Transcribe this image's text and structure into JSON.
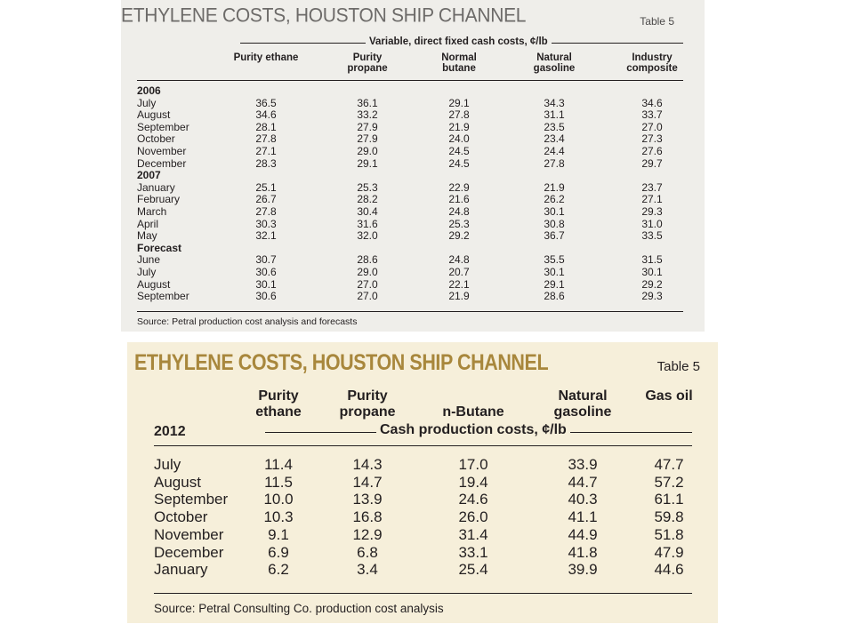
{
  "table1": {
    "title": "ETHYLENE COSTS, HOUSTON SHIP CHANNEL",
    "table_label": "Table 5",
    "spanner": "Variable, direct fixed cash costs, ¢/lb",
    "columns": [
      "Purity ethane",
      "Purity propane",
      "Normal butane",
      "Natural gasoline",
      "Industry composite"
    ],
    "groups": [
      {
        "label": "2006",
        "rows": [
          {
            "month": "July",
            "values": [
              "36.5",
              "36.1",
              "29.1",
              "34.3",
              "34.6"
            ]
          },
          {
            "month": "August",
            "values": [
              "34.6",
              "33.2",
              "27.8",
              "31.1",
              "33.7"
            ]
          },
          {
            "month": "September",
            "values": [
              "28.1",
              "27.9",
              "21.9",
              "23.5",
              "27.0"
            ]
          },
          {
            "month": "October",
            "values": [
              "27.8",
              "27.9",
              "24.0",
              "23.4",
              "27.3"
            ]
          },
          {
            "month": "November",
            "values": [
              "27.1",
              "29.0",
              "24.5",
              "24.4",
              "27.6"
            ]
          },
          {
            "month": "December",
            "values": [
              "28.3",
              "29.1",
              "24.5",
              "27.8",
              "29.7"
            ]
          }
        ]
      },
      {
        "label": "2007",
        "rows": [
          {
            "month": "January",
            "values": [
              "25.1",
              "25.3",
              "22.9",
              "21.9",
              "23.7"
            ]
          },
          {
            "month": "February",
            "values": [
              "26.7",
              "28.2",
              "21.6",
              "26.2",
              "27.1"
            ]
          },
          {
            "month": "March",
            "values": [
              "27.8",
              "30.4",
              "24.8",
              "30.1",
              "29.3"
            ]
          },
          {
            "month": "April",
            "values": [
              "30.3",
              "31.6",
              "25.3",
              "30.8",
              "31.0"
            ]
          },
          {
            "month": "May",
            "values": [
              "32.1",
              "32.0",
              "29.2",
              "36.7",
              "33.5"
            ]
          }
        ]
      },
      {
        "label": "Forecast",
        "rows": [
          {
            "month": "June",
            "values": [
              "30.7",
              "28.6",
              "24.8",
              "35.5",
              "31.5"
            ]
          },
          {
            "month": "July",
            "values": [
              "30.6",
              "29.0",
              "20.7",
              "30.1",
              "30.1"
            ]
          },
          {
            "month": "August",
            "values": [
              "30.1",
              "27.0",
              "22.1",
              "29.1",
              "29.2"
            ]
          },
          {
            "month": "September",
            "values": [
              "30.6",
              "27.0",
              "21.9",
              "28.6",
              "29.3"
            ]
          }
        ]
      }
    ],
    "source": "Source: Petral production cost analysis and forecasts",
    "colors": {
      "background": "#efeeea",
      "title": "#6d6b69"
    }
  },
  "table2": {
    "title": "ETHYLENE COSTS, HOUSTON SHIP CHANNEL",
    "table_label": "Table 5",
    "year": "2012",
    "spanner": "Cash production costs, ¢/lb",
    "columns": [
      "Purity ethane",
      "Purity propane",
      "n-Butane",
      "Natural gasoline",
      "Gas oil"
    ],
    "rows": [
      {
        "month": "July",
        "values": [
          "11.4",
          "14.3",
          "17.0",
          "33.9",
          "47.7"
        ]
      },
      {
        "month": "August",
        "values": [
          "11.5",
          "14.7",
          "19.4",
          "44.7",
          "57.2"
        ]
      },
      {
        "month": "September",
        "values": [
          "10.0",
          "13.9",
          "24.6",
          "40.3",
          "61.1"
        ]
      },
      {
        "month": "October",
        "values": [
          "10.3",
          "16.8",
          "26.0",
          "41.1",
          "59.8"
        ]
      },
      {
        "month": "November",
        "values": [
          "9.1",
          "12.9",
          "31.4",
          "44.9",
          "51.8"
        ]
      },
      {
        "month": "December",
        "values": [
          "6.9",
          "6.8",
          "33.1",
          "41.8",
          "47.9"
        ]
      },
      {
        "month": "January",
        "values": [
          "6.2",
          "3.4",
          "25.4",
          "39.9",
          "44.6"
        ]
      }
    ],
    "source": "Source: Petral Consulting Co. production cost analysis",
    "colors": {
      "background": "#f6efda",
      "title": "#a8873c"
    }
  }
}
